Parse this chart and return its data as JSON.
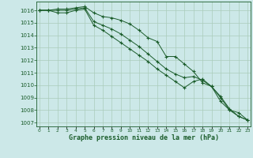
{
  "xlabel": "Graphe pression niveau de la mer (hPa)",
  "background_color": "#cce8e8",
  "grid_color": "#aaccbb",
  "line_color": "#1a5c2a",
  "marker_color": "#1a5c2a",
  "yticks": [
    1007,
    1008,
    1009,
    1010,
    1011,
    1012,
    1013,
    1014,
    1015,
    1016
  ],
  "xticks": [
    0,
    1,
    2,
    3,
    4,
    5,
    6,
    7,
    8,
    9,
    10,
    11,
    12,
    13,
    14,
    15,
    16,
    17,
    18,
    19,
    20,
    21,
    22,
    23
  ],
  "hours": [
    0,
    1,
    2,
    3,
    4,
    5,
    6,
    7,
    8,
    9,
    10,
    11,
    12,
    13,
    14,
    15,
    16,
    17,
    18,
    19,
    20,
    21,
    22,
    23
  ],
  "line1": [
    1016.0,
    1016.0,
    1016.1,
    1016.1,
    1016.2,
    1016.3,
    1015.8,
    1015.5,
    1015.4,
    1015.2,
    1014.9,
    1014.4,
    1013.8,
    1013.5,
    1012.3,
    1012.3,
    1011.7,
    1011.1,
    1010.2,
    1009.9,
    1009.0,
    1008.0,
    1007.8,
    1007.2
  ],
  "line2": [
    1016.0,
    1016.0,
    1016.0,
    1016.0,
    1016.1,
    1016.2,
    1015.1,
    1014.8,
    1014.5,
    1014.1,
    1013.6,
    1013.1,
    1012.5,
    1011.9,
    1011.3,
    1010.9,
    1010.6,
    1010.7,
    1010.4,
    1009.9,
    1009.1,
    1008.1,
    1007.5,
    1007.2
  ],
  "line3": [
    1016.0,
    1016.0,
    1015.8,
    1015.8,
    1016.0,
    1016.1,
    1014.8,
    1014.4,
    1013.9,
    1013.4,
    1012.9,
    1012.4,
    1011.9,
    1011.3,
    1010.8,
    1010.3,
    1009.8,
    1010.3,
    1010.5,
    1009.9,
    1008.7,
    1008.0,
    1007.5,
    1007.2
  ]
}
